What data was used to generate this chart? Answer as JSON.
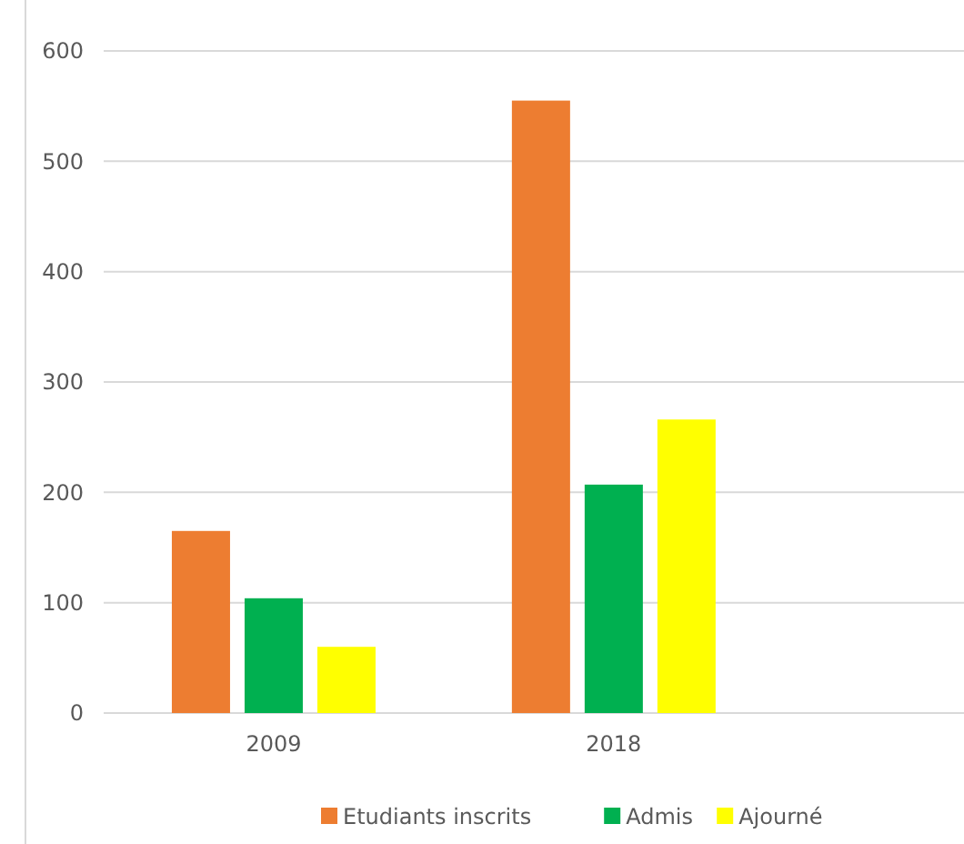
{
  "chart_data": {
    "type": "bar",
    "categories": [
      "2009",
      "2018"
    ],
    "series": [
      {
        "name": "Etudiants inscrits",
        "color": "#ed7d31",
        "values": [
          165,
          555
        ]
      },
      {
        "name": "Admis",
        "color": "#00b050",
        "values": [
          104,
          207
        ]
      },
      {
        "name": "Ajourné",
        "color": "#ffff00",
        "values": [
          60,
          266
        ]
      }
    ],
    "ylim": [
      0,
      600
    ],
    "yticks": [
      0,
      100,
      200,
      300,
      400,
      500,
      600
    ],
    "grid": "y",
    "legend": "bottom"
  }
}
